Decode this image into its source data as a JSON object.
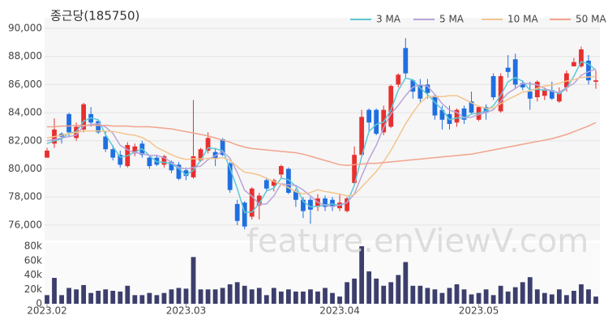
{
  "chart_data": [
    {
      "type": "candlestick",
      "title": "종근당(185750)",
      "open": [
        80800,
        81800,
        82500,
        83900,
        82200,
        82800,
        83900,
        83400,
        82300,
        81400,
        81000,
        80200,
        81100,
        81800,
        80800,
        80800,
        80300,
        80500,
        80300,
        79900,
        79400,
        80600,
        81300,
        81200,
        82100,
        80400,
        77500,
        77600,
        76600,
        77400,
        79200,
        78800,
        79600,
        80000,
        78400,
        77800,
        77800,
        77300,
        77900,
        77800,
        77200,
        77000,
        79000,
        81000,
        84200,
        84200,
        82600,
        83000,
        86000,
        88600,
        86300,
        86000,
        86000,
        85200,
        84200,
        83900,
        83300,
        84300,
        84800,
        83500,
        84400,
        86600,
        84100,
        87200,
        87800,
        86100,
        85500,
        85100,
        85200,
        85600,
        84800,
        85800,
        87300,
        87300,
        87700,
        86200
      ],
      "high": [
        81500,
        83600,
        82600,
        84000,
        83300,
        84700,
        84400,
        83500,
        82700,
        81700,
        81300,
        81900,
        81800,
        82000,
        80900,
        81000,
        81000,
        80600,
        80500,
        80100,
        84900,
        81500,
        82600,
        81500,
        82200,
        80500,
        77800,
        77700,
        78700,
        78300,
        79400,
        79300,
        80300,
        80100,
        78600,
        78000,
        78000,
        78200,
        78100,
        78000,
        78200,
        78000,
        81600,
        84200,
        84300,
        84300,
        84500,
        86000,
        86800,
        89300,
        86400,
        86400,
        86400,
        85300,
        84500,
        84500,
        84300,
        84500,
        85500,
        84500,
        84600,
        86800,
        86800,
        88100,
        88200,
        86300,
        86200,
        86300,
        85800,
        86200,
        85800,
        87000,
        87900,
        88700,
        88100,
        87000
      ],
      "low": [
        80800,
        81500,
        81800,
        82300,
        82000,
        82600,
        83000,
        82500,
        81200,
        80600,
        80100,
        80100,
        80900,
        80800,
        80000,
        80200,
        80100,
        79700,
        79200,
        79200,
        79300,
        80500,
        81100,
        80200,
        80900,
        78300,
        76000,
        75700,
        76400,
        76400,
        78400,
        78400,
        79300,
        78200,
        77300,
        76500,
        76100,
        77000,
        77000,
        77000,
        77000,
        76900,
        78900,
        80800,
        82600,
        82400,
        82400,
        82900,
        85800,
        86500,
        85000,
        84700,
        85000,
        83500,
        82800,
        82800,
        83000,
        83200,
        83900,
        83400,
        83500,
        84900,
        84000,
        86500,
        85700,
        85600,
        84200,
        84800,
        84900,
        84900,
        84700,
        85500,
        87300,
        87200,
        86000,
        85700
      ],
      "close": [
        81300,
        82800,
        82300,
        82600,
        83000,
        84600,
        83300,
        82600,
        81400,
        80800,
        80300,
        81700,
        81600,
        81000,
        80200,
        80300,
        80900,
        79900,
        79300,
        79500,
        80900,
        81400,
        82200,
        80700,
        81000,
        78500,
        76300,
        75900,
        78600,
        78100,
        78600,
        79200,
        80200,
        78300,
        77800,
        77000,
        77100,
        77900,
        77300,
        77300,
        77600,
        77900,
        81000,
        83700,
        83300,
        82500,
        84200,
        85900,
        86700,
        86800,
        85500,
        85000,
        85400,
        83800,
        83500,
        83200,
        84200,
        83500,
        84000,
        84400,
        84000,
        85100,
        86600,
        86900,
        86000,
        85800,
        85000,
        86200,
        85600,
        85000,
        85400,
        86800,
        87600,
        88500,
        86300,
        86300
      ],
      "up_color": "#e8302f",
      "down_color": "#1f6fe0",
      "series": [
        {
          "name": "3 MA",
          "color": "#5ec8d6",
          "values": [
            81800,
            82000,
            82133,
            82567,
            82633,
            83400,
            83633,
            83500,
            82433,
            81600,
            80833,
            80933,
            81200,
            81433,
            80933,
            80500,
            80467,
            80367,
            80033,
            79567,
            79900,
            80600,
            81500,
            81433,
            81300,
            80067,
            78600,
            76900,
            76933,
            77533,
            78433,
            78633,
            79333,
            79233,
            78767,
            77700,
            77300,
            77333,
            77433,
            77500,
            77400,
            77600,
            78833,
            80867,
            82667,
            83167,
            83333,
            84200,
            85600,
            86467,
            86333,
            85767,
            85300,
            84733,
            84233,
            83500,
            83633,
            83633,
            83900,
            83967,
            84133,
            84500,
            85233,
            86200,
            86500,
            86233,
            85600,
            85667,
            85600,
            85600,
            85333,
            85733,
            86600,
            87633,
            87467,
            87033
          ]
        },
        {
          "name": "5 MA",
          "color": "#b9a4da",
          "values": [
            82000,
            82100,
            82200,
            82300,
            82400,
            83060,
            83160,
            83220,
            82980,
            82540,
            81680,
            81360,
            81160,
            81080,
            80960,
            80960,
            80800,
            80460,
            80120,
            79980,
            80100,
            80200,
            80660,
            80940,
            81240,
            80760,
            79740,
            78480,
            78060,
            77480,
            77500,
            78080,
            78940,
            78880,
            78820,
            78500,
            78080,
            77620,
            77420,
            77320,
            77440,
            77600,
            78220,
            79500,
            80700,
            81680,
            82940,
            83920,
            84520,
            85220,
            85820,
            85980,
            85880,
            85300,
            84640,
            84180,
            84020,
            83640,
            83680,
            83860,
            84020,
            84200,
            84820,
            85400,
            85720,
            86080,
            86060,
            85980,
            85720,
            85520,
            85440,
            85800,
            86080,
            86660,
            86920,
            87100
          ]
        },
        {
          "name": "10 MA",
          "color": "#f2c58d",
          "values": [
            82200,
            82300,
            82400,
            82500,
            82600,
            82700,
            82700,
            82700,
            82680,
            82670,
            82570,
            82460,
            82390,
            82230,
            81950,
            81520,
            81280,
            81010,
            80800,
            80670,
            80730,
            80700,
            80760,
            80730,
            80800,
            80620,
            80160,
            79760,
            79690,
            79560,
            79330,
            79110,
            78910,
            78670,
            78370,
            78220,
            78320,
            78520,
            78390,
            78310,
            78210,
            78080,
            78160,
            78710,
            79260,
            79810,
            80520,
            81320,
            82260,
            83210,
            84000,
            84710,
            85150,
            85160,
            85140,
            85210,
            85210,
            84970,
            84700,
            84460,
            84310,
            84320,
            84640,
            84950,
            85200,
            85470,
            85550,
            85740,
            85900,
            85960,
            86100,
            86250,
            86350,
            86510,
            86540,
            86580
          ]
        },
        {
          "name": "50 MA",
          "color": "#f2a38d",
          "values": [
            83000,
            83000,
            83050,
            83050,
            83100,
            83100,
            83100,
            83100,
            83100,
            83050,
            83050,
            83050,
            83000,
            83000,
            83000,
            82950,
            82900,
            82850,
            82750,
            82650,
            82550,
            82450,
            82350,
            82200,
            82050,
            81900,
            81700,
            81550,
            81450,
            81400,
            81350,
            81300,
            81250,
            81200,
            81150,
            81050,
            80900,
            80750,
            80600,
            80450,
            80300,
            80250,
            80300,
            80350,
            80400,
            80400,
            80450,
            80500,
            80550,
            80600,
            80650,
            80700,
            80750,
            80800,
            80850,
            80900,
            80950,
            81000,
            81050,
            81150,
            81250,
            81350,
            81450,
            81550,
            81650,
            81750,
            81850,
            81950,
            82050,
            82150,
            82300,
            82450,
            82650,
            82850,
            83050,
            83300
          ]
        }
      ],
      "ylim": [
        74900,
        90750
      ],
      "yticks": [
        {
          "value": 76000,
          "label": "76,000"
        },
        {
          "value": 78000,
          "label": "78,000"
        },
        {
          "value": 80000,
          "label": "80,000"
        },
        {
          "value": 82000,
          "label": "82,000"
        },
        {
          "value": 84000,
          "label": "84,000"
        },
        {
          "value": 86000,
          "label": "86,000"
        },
        {
          "value": 88000,
          "label": "88,000"
        },
        {
          "value": 90000,
          "label": "90,000"
        }
      ],
      "grid": true
    },
    {
      "type": "bar",
      "color": "#3c3e6c",
      "values": [
        12000,
        36000,
        12000,
        22000,
        20000,
        26000,
        15000,
        18000,
        20000,
        18000,
        17000,
        25000,
        12000,
        12000,
        15000,
        12000,
        15000,
        20000,
        22000,
        21000,
        65000,
        20000,
        20000,
        20000,
        22000,
        27000,
        30000,
        25000,
        20000,
        22000,
        12000,
        22000,
        17000,
        20000,
        17000,
        17000,
        20000,
        17000,
        22000,
        15000,
        10000,
        30000,
        35000,
        80000,
        45000,
        35000,
        25000,
        30000,
        40000,
        58000,
        25000,
        25000,
        22000,
        20000,
        15000,
        22000,
        27000,
        20000,
        13000,
        15000,
        20000,
        12000,
        25000,
        17000,
        23000,
        30000,
        37000,
        20000,
        15000,
        13000,
        20000,
        12000,
        18000,
        27000,
        20000,
        10000
      ],
      "ylim": [
        0,
        80000
      ],
      "yticks": [
        0,
        {
          "value": 20000,
          "label": "20k"
        },
        {
          "value": 40000,
          "label": "40k"
        },
        {
          "value": 60000,
          "label": "60k"
        },
        {
          "value": 80000,
          "label": "80k"
        }
      ],
      "xticks": [
        {
          "value": 0,
          "label": "2023.02"
        },
        {
          "value": 19,
          "label": "2023.03"
        },
        {
          "value": 40,
          "label": "2023.04"
        },
        {
          "value": 59,
          "label": "2023.05"
        }
      ]
    }
  ],
  "watermark": "feature.enViewV.com"
}
